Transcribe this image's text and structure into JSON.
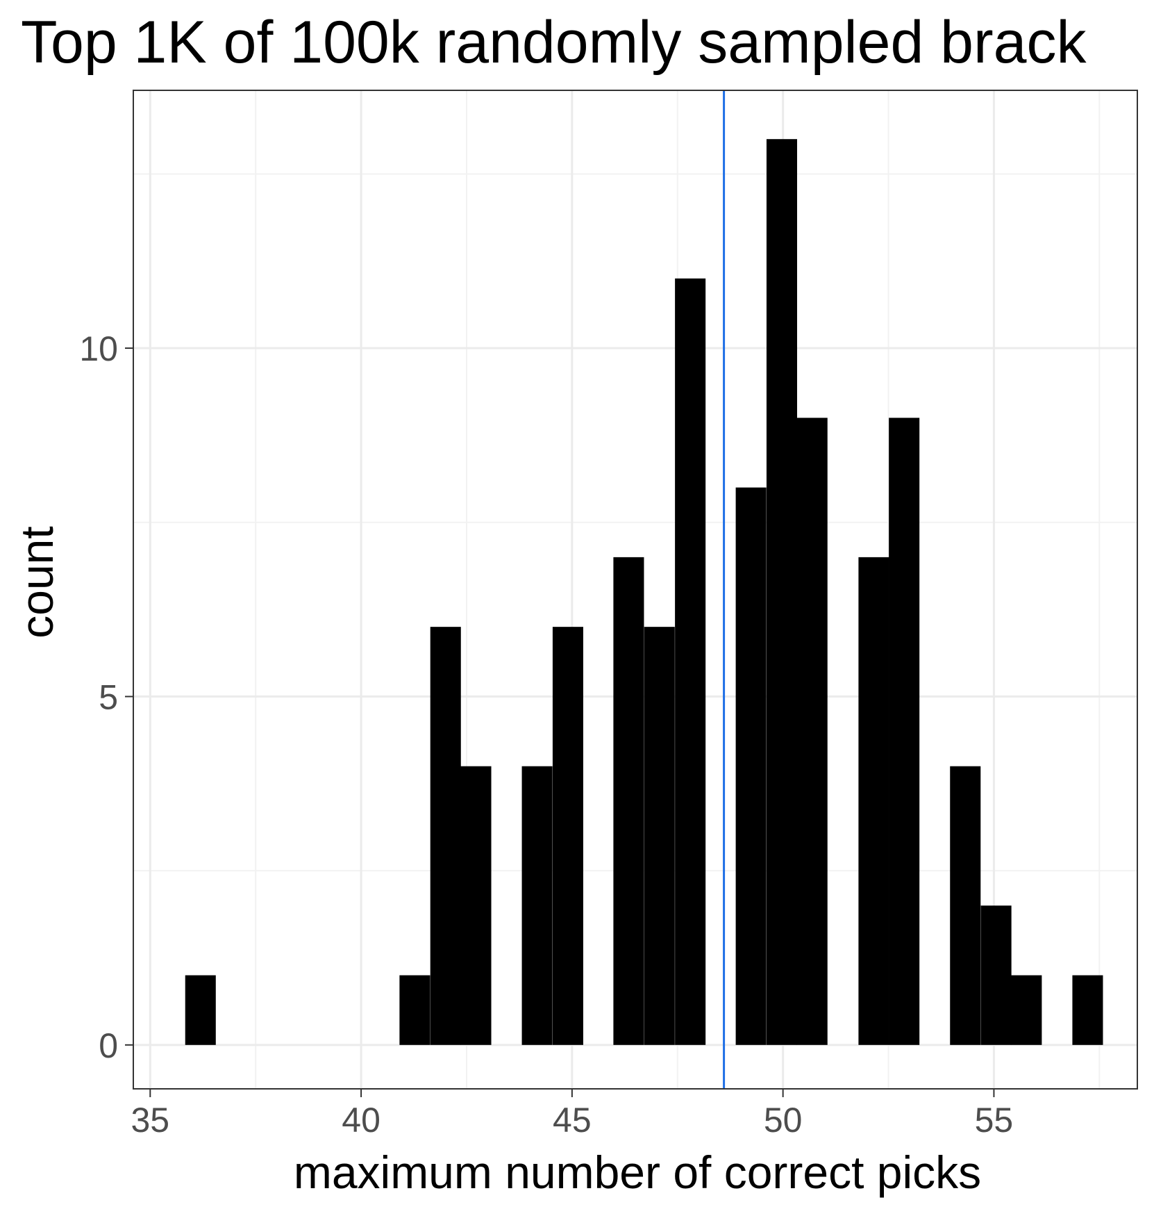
{
  "chart_data": {
    "type": "bar",
    "title": "Top 1K of 100k randomly sampled brack",
    "xlabel": "maximum number of correct picks",
    "ylabel": "count",
    "xlim": [
      34.6,
      58.4
    ],
    "ylim": [
      -0.63,
      13.7
    ],
    "x_ticks": [
      "35",
      "40",
      "45",
      "50",
      "55"
    ],
    "x_tick_values": [
      35,
      40,
      45,
      50,
      55
    ],
    "y_ticks": [
      "0",
      "5",
      "10"
    ],
    "y_tick_values": [
      0,
      5,
      10
    ],
    "y_minor_values": [
      2.5,
      7.5,
      12.5
    ],
    "grid": true,
    "bin_width": 0.725,
    "bins": [
      {
        "start": 35.83,
        "count": 1
      },
      {
        "start": 40.91,
        "count": 1
      },
      {
        "start": 41.64,
        "count": 6
      },
      {
        "start": 42.36,
        "count": 4
      },
      {
        "start": 43.81,
        "count": 4
      },
      {
        "start": 44.54,
        "count": 6
      },
      {
        "start": 45.98,
        "count": 7
      },
      {
        "start": 46.71,
        "count": 6
      },
      {
        "start": 47.44,
        "count": 11
      },
      {
        "start": 48.88,
        "count": 8
      },
      {
        "start": 49.61,
        "count": 13
      },
      {
        "start": 50.33,
        "count": 9
      },
      {
        "start": 51.79,
        "count": 7
      },
      {
        "start": 52.51,
        "count": 9
      },
      {
        "start": 53.96,
        "count": 4
      },
      {
        "start": 54.69,
        "count": 2
      },
      {
        "start": 55.41,
        "count": 1
      },
      {
        "start": 56.86,
        "count": 1
      }
    ],
    "vline": {
      "x": 48.6,
      "color": "#1e6fe6"
    },
    "colors": {
      "bar": "#000000",
      "grid_major": "#ebebeb",
      "grid_minor": "#f2f2f2",
      "panel_border": "#333333",
      "tick_text": "#4d4d4d"
    }
  }
}
